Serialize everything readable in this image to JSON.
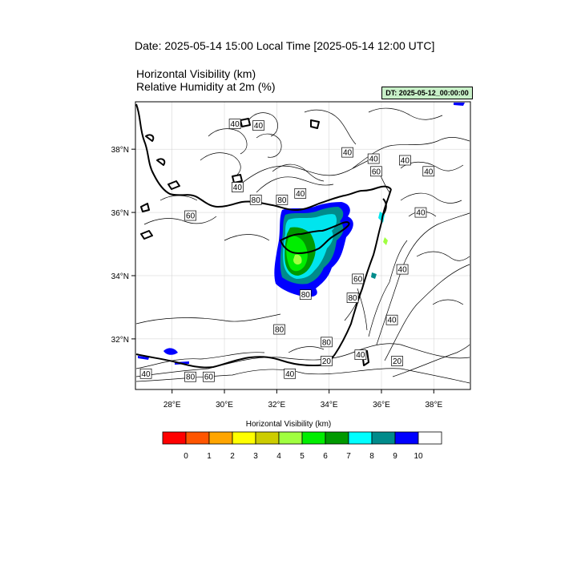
{
  "header": {
    "title": "Date: 2025-05-14  15:00 Local Time [2025-05-14  12:00 UTC]",
    "variable_1": "Horizontal Visibility   (km)",
    "variable_2": "Relative Humidity at 2m   (%)",
    "dt_badge": "DT: 2025-05-12_00:00:00"
  },
  "map": {
    "lon_range": [
      26.6,
      39.4
    ],
    "lat_range": [
      30.4,
      39.5
    ],
    "lon_ticks": [
      "28°E",
      "30°E",
      "32°E",
      "34°E",
      "36°E",
      "38°E"
    ],
    "lat_ticks": [
      "38°N",
      "36°N",
      "34°N",
      "32°N"
    ],
    "contour_labels": [
      {
        "text": "40",
        "lon": 27.0,
        "lat": 30.9
      },
      {
        "text": "80",
        "lon": 28.7,
        "lat": 30.8
      },
      {
        "text": "60",
        "lon": 29.4,
        "lat": 30.8
      },
      {
        "text": "80",
        "lon": 32.1,
        "lat": 32.3
      },
      {
        "text": "80",
        "lon": 33.1,
        "lat": 33.4
      },
      {
        "text": "60",
        "lon": 28.7,
        "lat": 35.9
      },
      {
        "text": "80",
        "lon": 31.2,
        "lat": 36.4
      },
      {
        "text": "40",
        "lon": 30.5,
        "lat": 36.8
      },
      {
        "text": "40",
        "lon": 30.4,
        "lat": 38.8
      },
      {
        "text": "40",
        "lon": 31.3,
        "lat": 38.75
      },
      {
        "text": "40",
        "lon": 32.9,
        "lat": 36.6
      },
      {
        "text": "80",
        "lon": 32.2,
        "lat": 36.4
      },
      {
        "text": "40",
        "lon": 34.7,
        "lat": 37.9
      },
      {
        "text": "40",
        "lon": 35.7,
        "lat": 37.7
      },
      {
        "text": "60",
        "lon": 35.8,
        "lat": 37.3
      },
      {
        "text": "40",
        "lon": 36.9,
        "lat": 37.65
      },
      {
        "text": "40",
        "lon": 37.8,
        "lat": 37.3
      },
      {
        "text": "40",
        "lon": 37.5,
        "lat": 36.0
      },
      {
        "text": "40",
        "lon": 36.8,
        "lat": 34.2
      },
      {
        "text": "60",
        "lon": 35.1,
        "lat": 33.9
      },
      {
        "text": "80",
        "lon": 34.9,
        "lat": 33.3
      },
      {
        "text": "40",
        "lon": 36.4,
        "lat": 32.6
      },
      {
        "text": "80",
        "lon": 33.9,
        "lat": 31.9
      },
      {
        "text": "40",
        "lon": 35.2,
        "lat": 31.5
      },
      {
        "text": "20",
        "lon": 36.6,
        "lat": 31.3
      },
      {
        "text": "20",
        "lon": 33.9,
        "lat": 31.3
      },
      {
        "text": "40",
        "lon": 32.5,
        "lat": 30.9
      }
    ]
  },
  "colorbar": {
    "title": "Horizontal Visibility  (km)",
    "tick_labels": [
      "0",
      "1",
      "2",
      "3",
      "4",
      "5",
      "6",
      "7",
      "8",
      "9",
      "10"
    ],
    "colors": [
      "#ff0000",
      "#ff5500",
      "#ffa500",
      "#ffff00",
      "#cccc00",
      "#a0ff40",
      "#00ee00",
      "#009900",
      "#00ffff",
      "#008b8b",
      "#0000ff",
      "#ffffff"
    ]
  }
}
